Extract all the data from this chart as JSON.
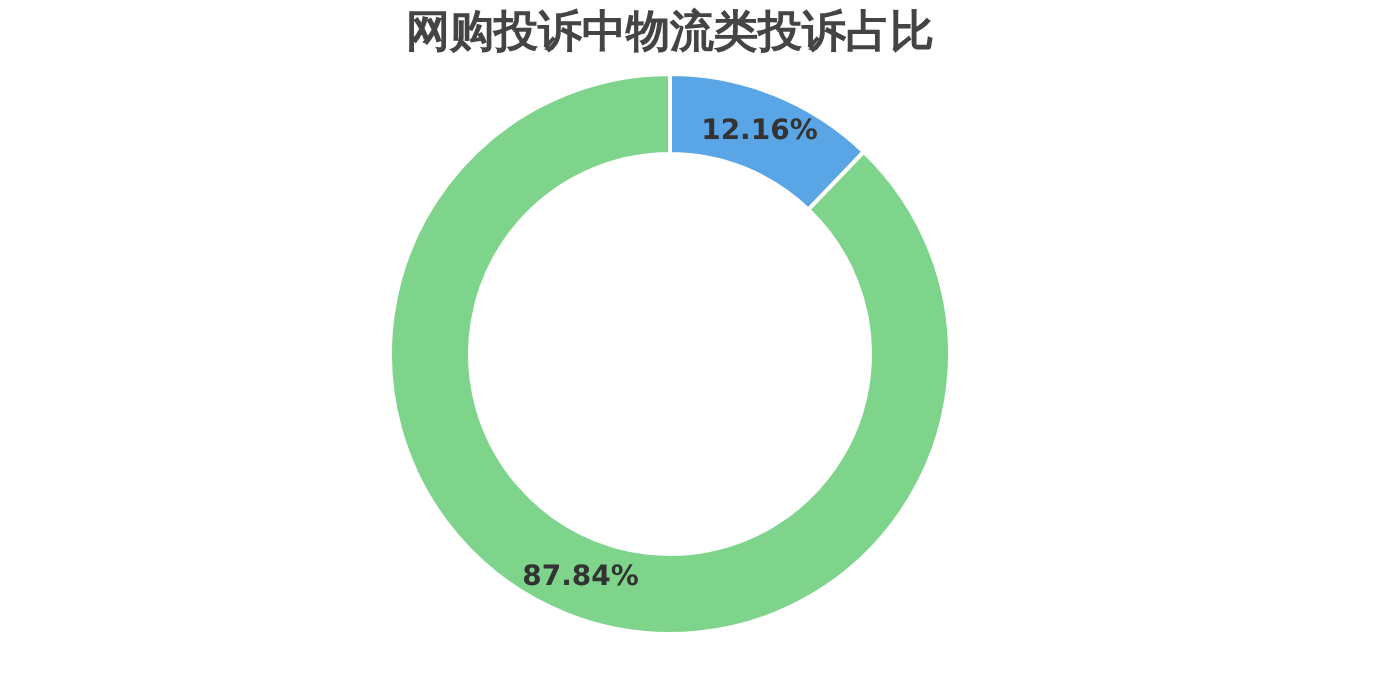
{
  "chart_data": {
    "type": "donut",
    "title": "网购投诉中物流类投诉占比",
    "categories": [
      null,
      null
    ],
    "values": [
      12.16,
      87.84
    ],
    "colors": [
      "#5aa5e6",
      "#7fd48c"
    ],
    "value_labels": [
      "12.16%",
      "87.84%"
    ]
  }
}
